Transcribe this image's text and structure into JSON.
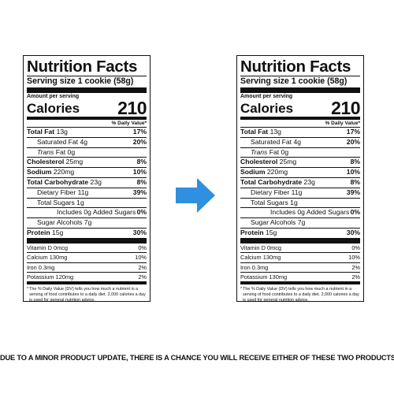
{
  "labels": [
    {
      "title": "Nutrition Facts",
      "serving": "Serving size 1 cookie (58g)",
      "amount_per_serving": "Amount per serving",
      "calories_label": "Calories",
      "calories_value": "210",
      "daily_value_header": "% Daily Value*",
      "nutrients": {
        "total_fat": {
          "label": "Total Fat",
          "amount": "13g",
          "pct": "17%"
        },
        "saturated_fat": {
          "label": "Saturated Fat",
          "amount": "4g",
          "pct": "20%"
        },
        "trans_fat": {
          "label": "Trans",
          "amount": "Fat 0g"
        },
        "cholesterol": {
          "label": "Cholesterol",
          "amount": "25mg",
          "pct": "8%"
        },
        "sodium": {
          "label": "Sodium",
          "amount": "220mg",
          "pct": "10%"
        },
        "total_carb": {
          "label": "Total Carbohydrate",
          "amount": "23g",
          "pct": "8%"
        },
        "fiber": {
          "label": "Dietary Fiber",
          "amount": "11g",
          "pct": "39%"
        },
        "total_sugars": {
          "label": "Total Sugars",
          "amount": "1g"
        },
        "added_sugars": {
          "label": "Includes 0g Added Sugars",
          "pct": "0%"
        },
        "sugar_alcohols": {
          "label": "Sugar Alcohols",
          "amount": "7g"
        },
        "protein": {
          "label": "Protein",
          "amount": "15g",
          "pct": "30%"
        }
      },
      "vitamins": [
        {
          "label": "Vitamin D 0mcg",
          "pct": "0%"
        },
        {
          "label": "Calcium 130mg",
          "pct": "10%"
        },
        {
          "label": "Iron 0.3mg",
          "pct": "2%"
        },
        {
          "label": "Potassium 120mg",
          "pct": "2%"
        }
      ],
      "footnote": "The % Daily Value (DV) tells you how much a nutrient in a serving of food contributes to a daily diet. 2,000 calories a day is used for general nutrition advice."
    },
    {
      "title": "Nutrition Facts",
      "serving": "Serving size 1 cookie (58g)",
      "amount_per_serving": "Amount per serving",
      "calories_label": "Calories",
      "calories_value": "210",
      "daily_value_header": "% Daily Value*",
      "nutrients": {
        "total_fat": {
          "label": "Total Fat",
          "amount": "13g",
          "pct": "17%"
        },
        "saturated_fat": {
          "label": "Saturated Fat",
          "amount": "4g",
          "pct": "20%"
        },
        "trans_fat": {
          "label": "Trans",
          "amount": "Fat 0g"
        },
        "cholesterol": {
          "label": "Cholesterol",
          "amount": "25mg",
          "pct": "8%"
        },
        "sodium": {
          "label": "Sodium",
          "amount": "220mg",
          "pct": "10%"
        },
        "total_carb": {
          "label": "Total Carbohydrate",
          "amount": "23g",
          "pct": "8%"
        },
        "fiber": {
          "label": "Dietary Fiber",
          "amount": "11g",
          "pct": "39%"
        },
        "total_sugars": {
          "label": "Total Sugars",
          "amount": "1g"
        },
        "added_sugars": {
          "label": "Includes 0g Added Sugars",
          "pct": "0%"
        },
        "sugar_alcohols": {
          "label": "Sugar Alcohols",
          "amount": "7g"
        },
        "protein": {
          "label": "Protein",
          "amount": "15g",
          "pct": "30%"
        }
      },
      "vitamins": [
        {
          "label": "Vitamin D 0mcg",
          "pct": "0%"
        },
        {
          "label": "Calcium 130mg",
          "pct": "10%"
        },
        {
          "label": "Iron 0.3mg",
          "pct": "2%"
        },
        {
          "label": "Potassium 130mg",
          "pct": "2%"
        }
      ],
      "footnote": "The % Daily Value (DV) tells you how much a nutrient in a serving of food contributes to a daily diet. 2,000 calories a day is used for general nutrition advice."
    }
  ],
  "arrow": {
    "icon": "arrow-right-icon",
    "color": "#2f8fe0"
  },
  "disclaimer": "DUE TO A MINOR PRODUCT UPDATE, THERE IS A CHANCE YOU WILL RECEIVE EITHER OF THESE TWO PRODUCTS"
}
